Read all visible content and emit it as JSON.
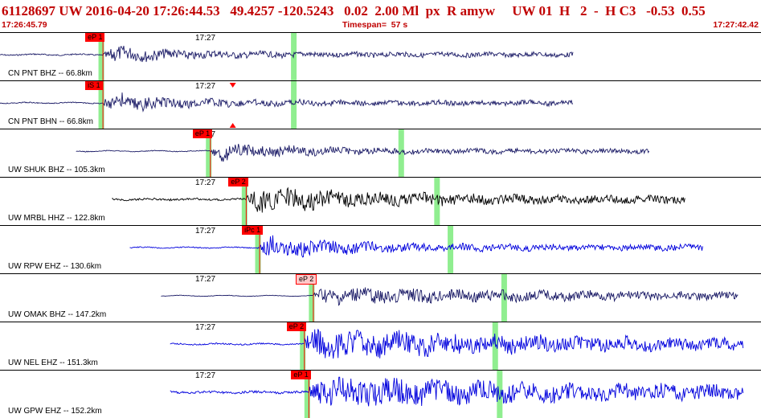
{
  "header": {
    "title": "61128697 UW 2016-04-20 17:26:44.53   49.4257 -120.5243   0.02  2.00 Ml  px  R amyw     UW 01  H   2  -  H C3   -0.53  0.55",
    "start_time": "17:26:45.79",
    "timespan": "Timespan=  57 s",
    "end_time": "17:27:42.42"
  },
  "colors": {
    "header_text": "#c00000",
    "trace_dark": "#1a1a66",
    "trace_black": "#000000",
    "trace_blue": "#0000dd",
    "pick_red": "#ff0000",
    "pick_pink": "#ffc8c8",
    "window_green": "#90ee90"
  },
  "chart_data": {
    "type": "line",
    "title": "61128697 UW 2016-04-20 17:26:44.53",
    "x_unit": "time (UTC)",
    "xlim": [
      "17:26:45.79",
      "17:27:42.42"
    ],
    "tick_label": "17:27",
    "series": [
      {
        "name": "CN PNT BHZ -- 66.8km",
        "label": "CN PNT BHZ -- 66.8km",
        "pick": "eP 1",
        "pick_style": "red",
        "color": "dark",
        "noise": 0.8,
        "start": 0,
        "end": 12.8,
        "onset": 2.3,
        "coda_decay": 0.2,
        "peak": 8
      },
      {
        "name": "CN PNT BHN -- 66.8km",
        "label": "CN PNT BHN -- 66.8km",
        "pick": "iS 1",
        "pick_style": "red",
        "color": "dark",
        "noise": 0.6,
        "start": 0,
        "end": 12.8,
        "onset": 2.3,
        "coda_decay": 0.25,
        "peak": 10,
        "s_arrival": 5.2
      },
      {
        "name": "UW SHUK BHZ -- 105.3km",
        "label": "UW SHUK BHZ -- 105.3km",
        "pick": "eP 1",
        "pick_style": "red",
        "color": "dark",
        "noise": 0.5,
        "start": 1.7,
        "end": 14.5,
        "onset": 4.7,
        "coda_decay": 0.2,
        "peak": 9
      },
      {
        "name": "UW MRBL HHZ -- 122.8km",
        "label": "UW MRBL HHZ -- 122.8km",
        "pick": "eP 2",
        "pick_style": "red",
        "color": "black",
        "noise": 1.2,
        "start": 2.5,
        "end": 15.3,
        "onset": 5.5,
        "coda_decay": 0.12,
        "peak": 12
      },
      {
        "name": "UW RPW EHZ -- 130.6km",
        "label": "UW RPW EHZ -- 130.6km",
        "pick": "iPc 1",
        "pick_style": "red",
        "color": "blue",
        "noise": 0.6,
        "start": 2.9,
        "end": 15.7,
        "onset": 5.8,
        "coda_decay": 0.18,
        "peak": 11
      },
      {
        "name": "UW OMAK BHZ -- 147.2km",
        "label": "UW OMAK BHZ -- 147.2km",
        "pick": "eP 2",
        "pick_style": "pink",
        "color": "dark",
        "noise": 0.3,
        "start": 3.6,
        "end": 16.5,
        "onset": 7.0,
        "coda_decay": 0.05,
        "peak": 8
      },
      {
        "name": "UW NEL EHZ -- 151.3km",
        "label": "UW NEL EHZ -- 151.3km",
        "pick": "eP 2",
        "pick_style": "red",
        "color": "blue",
        "noise": 0.8,
        "start": 3.8,
        "end": 16.6,
        "onset": 6.8,
        "coda_decay": 0.06,
        "peak": 14
      },
      {
        "name": "UW GPW EHZ -- 152.2km",
        "label": "UW GPW EHZ -- 152.2km",
        "pick": "eP 1",
        "pick_style": "red",
        "color": "blue",
        "noise": 1.5,
        "start": 3.8,
        "end": 16.6,
        "onset": 6.9,
        "coda_decay": 0.05,
        "peak": 14
      }
    ]
  }
}
